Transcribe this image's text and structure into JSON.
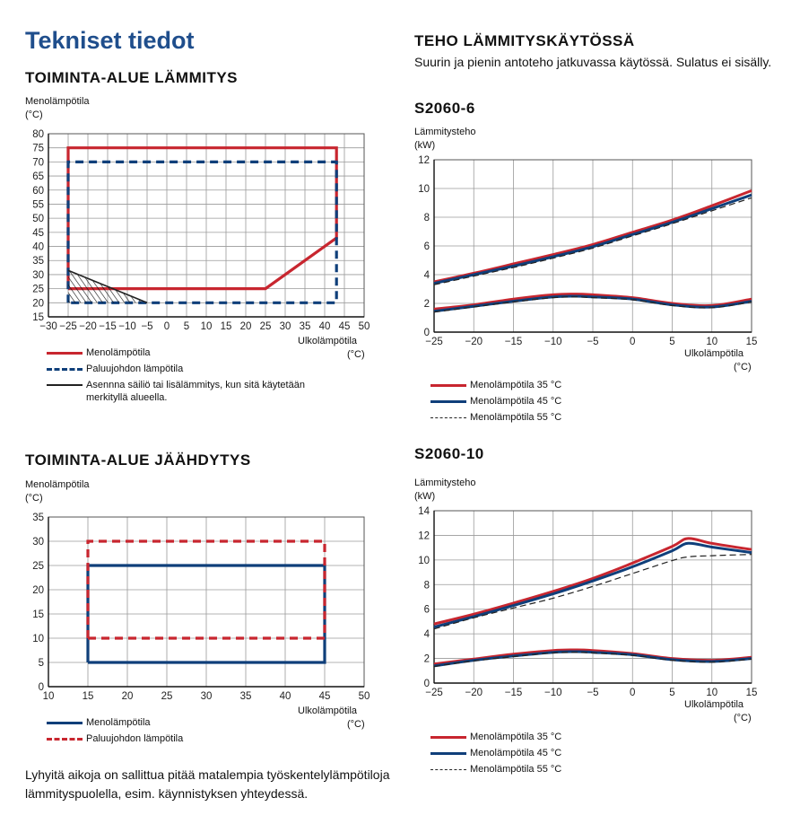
{
  "page": {
    "title": "Tekniset tiedot",
    "bottom_note": "Lyhyitä aikoja on sallittua pitää matalempia työskentelylämpötiloja lämmityspuolella, esim. käynnistyksen yhteydessä."
  },
  "heating_range": {
    "heading": "TOIMINTA-ALUE LÄMMITYS",
    "ylabel": "Menolämpötila",
    "yunit": "(°C)",
    "xlabel": "Ulkolämpötila",
    "xunit": "(°C)",
    "legend": [
      {
        "label": "Menolämpötila"
      },
      {
        "label": "Paluujohdon lämpötila"
      },
      {
        "label": "Asennna säiliö tai lisälämmitys, kun sitä käytetään merkityllä alueella."
      }
    ]
  },
  "cooling_range": {
    "heading": "TOIMINTA-ALUE JÄÄHDYTYS",
    "ylabel": "Menolämpötila",
    "yunit": "(°C)",
    "xlabel": "Ulkolämpötila",
    "xunit": "(°C)",
    "legend": [
      {
        "label": "Menolämpötila"
      },
      {
        "label": "Paluujohdon lämpötila"
      }
    ]
  },
  "power_section": {
    "heading": "TEHO LÄMMITYSKÄYTÖSSÄ",
    "description": "Suurin ja pienin antoteho jatkuvassa käytössä. Sulatus ei sisälly."
  },
  "s6": {
    "heading": "S2060-6",
    "ylabel": "Lämmitysteho",
    "yunit": "(kW)",
    "xlabel": "Ulkolämpötila",
    "xunit": "(°C)",
    "legend": [
      {
        "label": "Menolämpötila 35 °C"
      },
      {
        "label": "Menolämpötila 45 °C"
      },
      {
        "label": "Menolämpötila 55 °C"
      }
    ]
  },
  "s10": {
    "heading": "S2060-10",
    "ylabel": "Lämmitysteho",
    "yunit": "(kW)",
    "xlabel": "Ulkolämpötila",
    "xunit": "(°C)",
    "legend": [
      {
        "label": "Menolämpötila 35 °C"
      },
      {
        "label": "Menolämpötila 45 °C"
      },
      {
        "label": "Menolämpötila 55 °C"
      }
    ]
  },
  "colors": {
    "red": "#c8262f",
    "blue": "#0f3f7a",
    "dark": "#222222",
    "grid": "#9a9a9a"
  },
  "chart_data": [
    {
      "id": "heating",
      "type": "area",
      "xlim": [
        -30,
        50
      ],
      "ylim": [
        15,
        80
      ],
      "xticks": [
        -30,
        -25,
        -20,
        -15,
        -10,
        -5,
        0,
        5,
        10,
        15,
        20,
        25,
        30,
        35,
        40,
        45,
        50
      ],
      "yticks": [
        15,
        20,
        25,
        30,
        35,
        40,
        45,
        50,
        55,
        60,
        65,
        70,
        75,
        80
      ],
      "grid": true,
      "series": [
        {
          "name": "Menolämpötila",
          "color": "red",
          "style": "solid",
          "points": [
            [
              -25,
              25
            ],
            [
              -25,
              75
            ],
            [
              43,
              75
            ],
            [
              43,
              43
            ],
            [
              25,
              25
            ],
            [
              -25,
              25
            ]
          ]
        },
        {
          "name": "Paluujohdon lämpötila",
          "color": "blue",
          "style": "dashed",
          "points": [
            [
              -25,
              20
            ],
            [
              -25,
              70
            ],
            [
              43,
              70
            ],
            [
              43,
              20
            ],
            [
              -25,
              20
            ]
          ]
        },
        {
          "name": "Asennna säiliö tai lisälämmitys, kun sitä käytetään merkityllä alueella.",
          "color": "dark",
          "style": "hatch",
          "points": [
            [
              -25,
              31.5
            ],
            [
              -25,
              20
            ],
            [
              -10,
              20
            ],
            [
              -5,
              20
            ],
            [
              -25,
              31.5
            ]
          ]
        }
      ]
    },
    {
      "id": "cooling",
      "type": "area",
      "xlim": [
        10,
        50
      ],
      "ylim": [
        0,
        35
      ],
      "xticks": [
        10,
        15,
        20,
        25,
        30,
        35,
        40,
        45,
        50
      ],
      "yticks": [
        0,
        5,
        10,
        15,
        20,
        25,
        30,
        35
      ],
      "grid": true,
      "series": [
        {
          "name": "Menolämpötila",
          "color": "blue",
          "style": "solid",
          "points": [
            [
              15,
              5
            ],
            [
              15,
              25
            ],
            [
              45,
              25
            ],
            [
              45,
              5
            ],
            [
              15,
              5
            ]
          ]
        },
        {
          "name": "Paluujohdon lämpötila",
          "color": "red",
          "style": "dashed",
          "points": [
            [
              15,
              10
            ],
            [
              15,
              30
            ],
            [
              45,
              30
            ],
            [
              45,
              10
            ],
            [
              15,
              10
            ]
          ]
        }
      ]
    },
    {
      "id": "s6",
      "type": "line",
      "xlim": [
        -25,
        15
      ],
      "ylim": [
        0,
        12
      ],
      "xticks": [
        -25,
        -20,
        -15,
        -10,
        -5,
        0,
        5,
        10,
        15
      ],
      "yticks": [
        0,
        2,
        4,
        6,
        8,
        10,
        12
      ],
      "grid": true,
      "series": [
        {
          "name": "Menolämpötila 35 °C",
          "color": "red",
          "style": "solid",
          "width": 3,
          "max": [
            [
              -25,
              3.5
            ],
            [
              -20,
              4.1
            ],
            [
              -15,
              4.75
            ],
            [
              -10,
              5.4
            ],
            [
              -5,
              6.1
            ],
            [
              0,
              6.95
            ],
            [
              5,
              7.8
            ],
            [
              10,
              8.8
            ],
            [
              15,
              9.85
            ]
          ],
          "min": [
            [
              -25,
              1.6
            ],
            [
              -20,
              1.9
            ],
            [
              -15,
              2.3
            ],
            [
              -10,
              2.6
            ],
            [
              -7,
              2.65
            ],
            [
              -5,
              2.6
            ],
            [
              0,
              2.4
            ],
            [
              5,
              2.0
            ],
            [
              10,
              1.85
            ],
            [
              15,
              2.3
            ]
          ]
        },
        {
          "name": "Menolämpötila 45 °C",
          "color": "blue",
          "style": "solid",
          "width": 3,
          "max": [
            [
              -25,
              3.4
            ],
            [
              -20,
              4.0
            ],
            [
              -15,
              4.6
            ],
            [
              -10,
              5.25
            ],
            [
              -5,
              5.95
            ],
            [
              0,
              6.8
            ],
            [
              5,
              7.65
            ],
            [
              10,
              8.6
            ],
            [
              15,
              9.55
            ]
          ],
          "min": [
            [
              -25,
              1.45
            ],
            [
              -20,
              1.8
            ],
            [
              -15,
              2.15
            ],
            [
              -10,
              2.45
            ],
            [
              -7,
              2.5
            ],
            [
              -5,
              2.45
            ],
            [
              0,
              2.3
            ],
            [
              5,
              1.9
            ],
            [
              10,
              1.75
            ],
            [
              15,
              2.15
            ]
          ]
        },
        {
          "name": "Menolämpötila 55 °C",
          "color": "dark",
          "style": "dashed",
          "width": 1.2,
          "max": [
            [
              -25,
              3.3
            ],
            [
              -20,
              3.9
            ],
            [
              -15,
              4.5
            ],
            [
              -10,
              5.15
            ],
            [
              -5,
              5.85
            ],
            [
              0,
              6.7
            ],
            [
              5,
              7.55
            ],
            [
              10,
              8.45
            ],
            [
              15,
              9.35
            ]
          ],
          "min": [
            [
              -25,
              1.4
            ],
            [
              -20,
              1.75
            ],
            [
              -15,
              2.1
            ],
            [
              -10,
              2.4
            ],
            [
              -7,
              2.45
            ],
            [
              -5,
              2.4
            ],
            [
              0,
              2.25
            ],
            [
              5,
              1.85
            ],
            [
              10,
              1.7
            ],
            [
              15,
              2.1
            ]
          ]
        }
      ]
    },
    {
      "id": "s10",
      "type": "line",
      "xlim": [
        -25,
        15
      ],
      "ylim": [
        0,
        14
      ],
      "xticks": [
        -25,
        -20,
        -15,
        -10,
        -5,
        0,
        5,
        10,
        15
      ],
      "yticks": [
        0,
        2,
        4,
        6,
        8,
        10,
        12,
        14
      ],
      "grid": true,
      "series": [
        {
          "name": "Menolämpötila 35 °C",
          "color": "red",
          "style": "solid",
          "width": 3,
          "max": [
            [
              -25,
              4.8
            ],
            [
              -20,
              5.6
            ],
            [
              -15,
              6.5
            ],
            [
              -10,
              7.45
            ],
            [
              -5,
              8.5
            ],
            [
              0,
              9.75
            ],
            [
              5,
              11.1
            ],
            [
              7,
              11.75
            ],
            [
              10,
              11.35
            ],
            [
              15,
              10.85
            ]
          ],
          "min": [
            [
              -25,
              1.55
            ],
            [
              -20,
              1.95
            ],
            [
              -15,
              2.35
            ],
            [
              -10,
              2.65
            ],
            [
              -7,
              2.7
            ],
            [
              -5,
              2.65
            ],
            [
              0,
              2.4
            ],
            [
              5,
              2.0
            ],
            [
              10,
              1.85
            ],
            [
              15,
              2.1
            ]
          ]
        },
        {
          "name": "Menolämpötila 45 °C",
          "color": "blue",
          "style": "solid",
          "width": 3,
          "max": [
            [
              -25,
              4.55
            ],
            [
              -20,
              5.4
            ],
            [
              -15,
              6.3
            ],
            [
              -10,
              7.25
            ],
            [
              -5,
              8.3
            ],
            [
              0,
              9.45
            ],
            [
              5,
              10.75
            ],
            [
              7,
              11.35
            ],
            [
              10,
              11.05
            ],
            [
              15,
              10.6
            ]
          ],
          "min": [
            [
              -25,
              1.4
            ],
            [
              -20,
              1.85
            ],
            [
              -15,
              2.2
            ],
            [
              -10,
              2.5
            ],
            [
              -7,
              2.55
            ],
            [
              -5,
              2.5
            ],
            [
              0,
              2.3
            ],
            [
              5,
              1.9
            ],
            [
              10,
              1.75
            ],
            [
              15,
              2.0
            ]
          ]
        },
        {
          "name": "Menolämpötila 55 °C",
          "color": "dark",
          "style": "dashed",
          "width": 1.2,
          "max": [
            [
              -25,
              4.4
            ],
            [
              -20,
              5.3
            ],
            [
              -15,
              6.1
            ],
            [
              -10,
              6.9
            ],
            [
              -5,
              7.85
            ],
            [
              0,
              8.9
            ],
            [
              5,
              9.95
            ],
            [
              7,
              10.25
            ],
            [
              10,
              10.35
            ],
            [
              15,
              10.45
            ]
          ],
          "min": [
            [
              -25,
              1.35
            ],
            [
              -20,
              1.8
            ],
            [
              -15,
              2.15
            ],
            [
              -10,
              2.45
            ],
            [
              -7,
              2.5
            ],
            [
              -5,
              2.45
            ],
            [
              0,
              2.25
            ],
            [
              5,
              1.85
            ],
            [
              10,
              1.7
            ],
            [
              15,
              1.95
            ]
          ]
        }
      ]
    }
  ]
}
